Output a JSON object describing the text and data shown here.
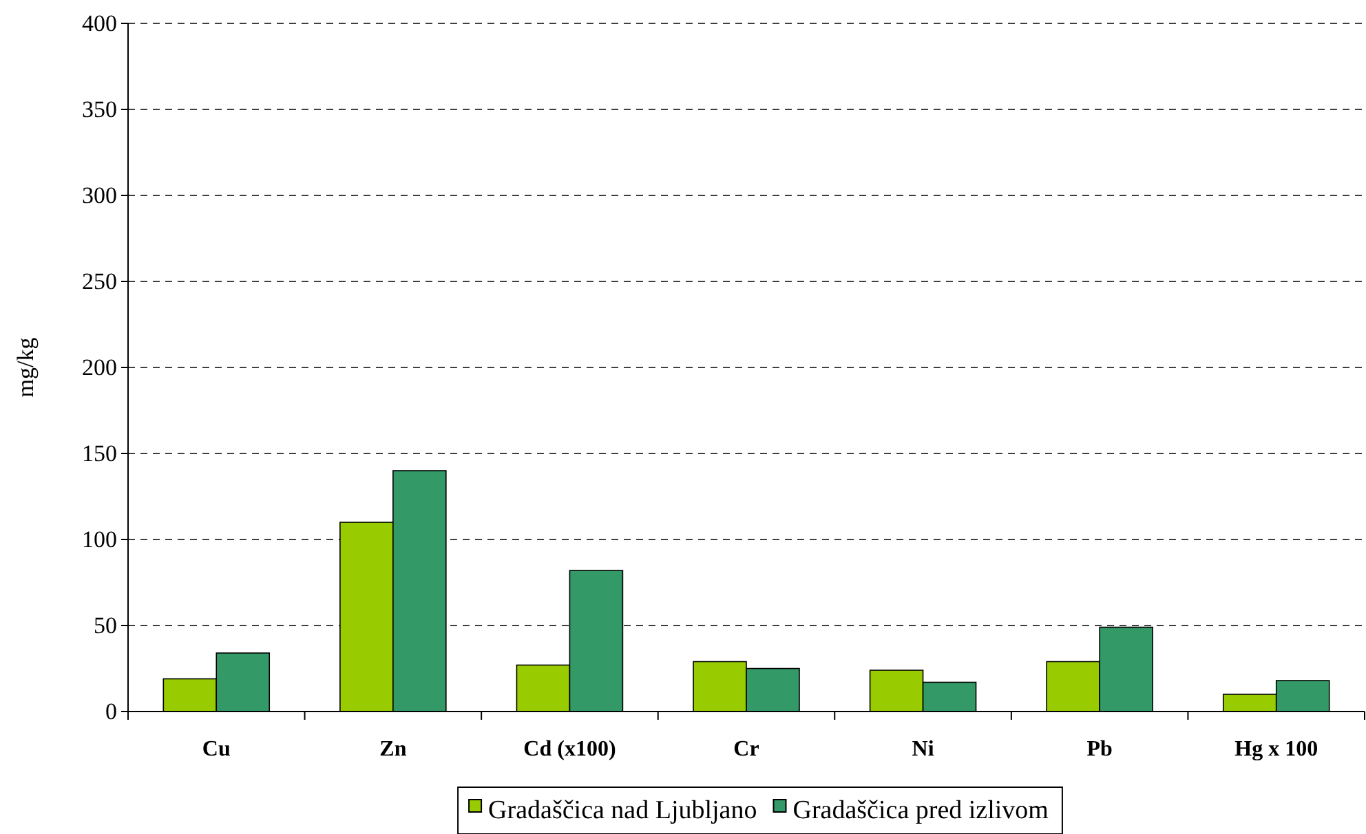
{
  "chart_data": {
    "type": "bar",
    "ylabel": "mg/kg",
    "categories": [
      "Cu",
      "Zn",
      "Cd (x100)",
      "Cr",
      "Ni",
      "Pb",
      "Hg x 100"
    ],
    "series": [
      {
        "name": "Gradaščica nad Ljubljano",
        "color": "#99cc00",
        "values": [
          19,
          110,
          27,
          29,
          24,
          29,
          10
        ]
      },
      {
        "name": "Gradaščica pred izlivom",
        "color": "#339966",
        "values": [
          34,
          140,
          82,
          25,
          17,
          49,
          18
        ]
      }
    ],
    "ylim": [
      0,
      400
    ],
    "yticks": [
      0,
      50,
      100,
      150,
      200,
      250,
      300,
      350,
      400
    ],
    "grid": "y",
    "legend": "bottom"
  }
}
